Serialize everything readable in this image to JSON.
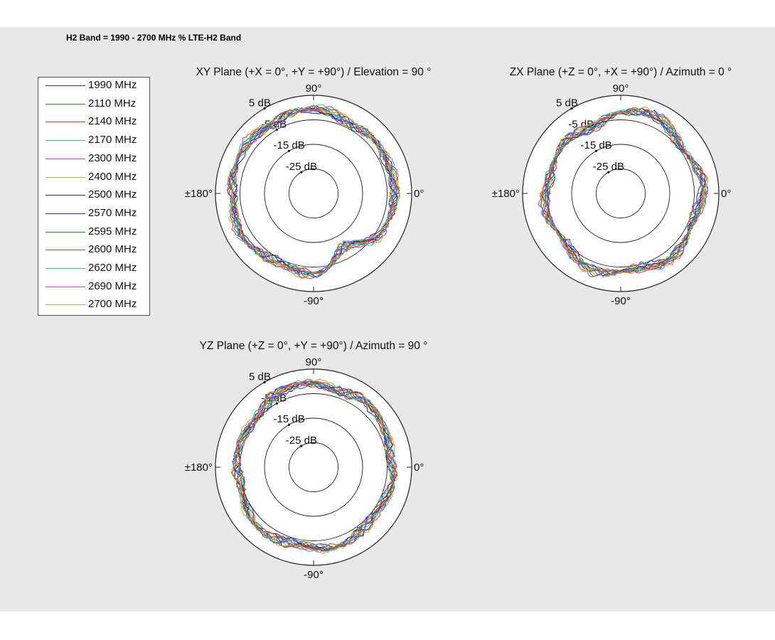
{
  "page": {
    "band_title": "H2 Band = 1990 - 2700 MHz % LTE-H2 Band"
  },
  "legend": [
    {
      "label": "1990 MHz",
      "color": "#2b2bd6"
    },
    {
      "label": "2110 MHz",
      "color": "#2a8a2a"
    },
    {
      "label": "2140 MHz",
      "color": "#e03a3a"
    },
    {
      "label": "2170 MHz",
      "color": "#27c2c2"
    },
    {
      "label": "2300 MHz",
      "color": "#c83ac8"
    },
    {
      "label": "2400 MHz",
      "color": "#b8b82a"
    },
    {
      "label": "2500 MHz",
      "color": "#333333"
    },
    {
      "label": "2570 MHz",
      "color": "#2b2bd6"
    },
    {
      "label": "2595 MHz",
      "color": "#2a8a2a"
    },
    {
      "label": "2600 MHz",
      "color": "#e03a3a"
    },
    {
      "label": "2620 MHz",
      "color": "#27c2c2"
    },
    {
      "label": "2690 MHz",
      "color": "#c83ac8"
    },
    {
      "label": "2700 MHz",
      "color": "#b8b82a"
    }
  ],
  "chart_data": [
    {
      "type": "line",
      "subtype": "polar",
      "title": "XY Plane (+X = 0°, +Y = +90°) / Elevation = 90 °",
      "angle_labels": {
        "top": "90°",
        "bottom": "-90°",
        "left": "±180°",
        "right": "0°"
      },
      "radial_ticks": [
        "5 dB",
        "-5 dB",
        "-15 dB",
        "-25 dB"
      ],
      "rlim": [
        -35,
        5
      ],
      "grid": true,
      "series_envelope_db": {
        "nominal": -1.5,
        "angles_deg": [
          0,
          30,
          60,
          90,
          120,
          150,
          180,
          210,
          240,
          270,
          300,
          330
        ],
        "level_db": [
          -1,
          -3,
          -2,
          -1.5,
          -1,
          -2,
          -1,
          -2,
          -2.5,
          -3,
          -9,
          -4
        ]
      }
    },
    {
      "type": "line",
      "subtype": "polar",
      "title": "ZX Plane (+Z = 0°, +X = +90°) / Azimuth = 0 °",
      "angle_labels": {
        "top": "90°",
        "bottom": "-90°",
        "left": "±180°",
        "right": "0°"
      },
      "radial_ticks": [
        "5 dB",
        "-5 dB",
        "-15 dB",
        "-25 dB"
      ],
      "rlim": [
        -35,
        5
      ],
      "grid": true,
      "series_envelope_db": {
        "nominal": -3,
        "angles_deg": [
          0,
          30,
          60,
          90,
          120,
          150,
          180,
          210,
          240,
          270,
          300,
          330
        ],
        "level_db": [
          -2,
          -3,
          -1.5,
          -1.5,
          -6,
          -4,
          -5,
          -4,
          -3,
          -2.5,
          -2.5,
          -2.5
        ]
      }
    },
    {
      "type": "line",
      "subtype": "polar",
      "title": "YZ Plane (+Z = 0°, +Y = +90°) / Azimuth = 90 °",
      "angle_labels": {
        "top": "90°",
        "bottom": "-90°",
        "left": "±180°",
        "right": "0°"
      },
      "radial_ticks": [
        "5 dB",
        "-5 dB",
        "-15 dB",
        "-25 dB"
      ],
      "rlim": [
        -35,
        5
      ],
      "grid": true,
      "series_envelope_db": {
        "nominal": -2,
        "angles_deg": [
          0,
          30,
          60,
          90,
          120,
          150,
          180,
          210,
          240,
          270,
          300,
          330
        ],
        "level_db": [
          -3,
          -2,
          -1.5,
          -1,
          -2,
          -4,
          -4,
          -3,
          -2,
          -2,
          -2,
          -3
        ]
      }
    }
  ]
}
